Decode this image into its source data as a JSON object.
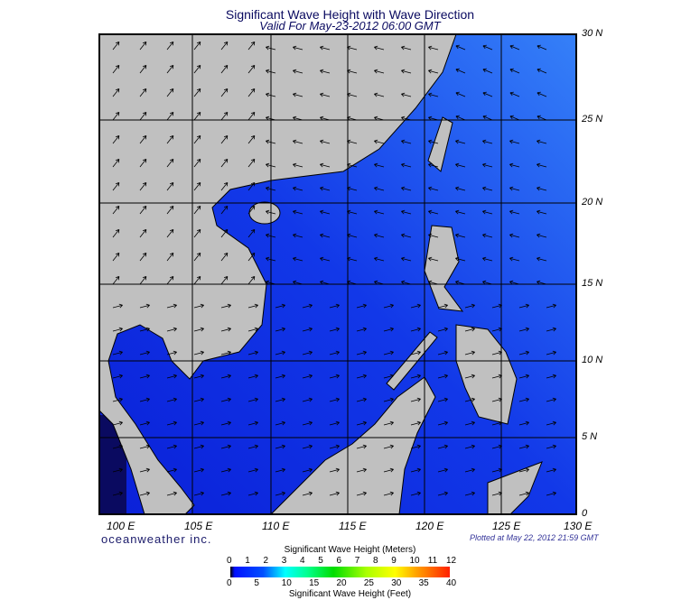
{
  "title": "Significant Wave Height with Wave Direction",
  "subtitle": "Valid For May-23-2012 06:00 GMT",
  "lon_labels": [
    "100 E",
    "105 E",
    "110 E",
    "115 E",
    "120 E",
    "125 E",
    "130 E"
  ],
  "lat_labels": [
    "30 N",
    "25 N",
    "20 N",
    "15 N",
    "10 N",
    "5 N",
    "0"
  ],
  "brand": "oceanweather inc.",
  "plotted": "Plotted at May 22, 2012 21:59 GMT",
  "colorbar": {
    "meters_title": "Significant Wave Height (Meters)",
    "meters_ticks": [
      "0",
      "1",
      "2",
      "3",
      "4",
      "5",
      "6",
      "7",
      "8",
      "9",
      "10",
      "11",
      "12"
    ],
    "feet_ticks": [
      "0",
      "5",
      "10",
      "15",
      "20",
      "25",
      "30",
      "35",
      "40"
    ],
    "feet_title": "Significant Wave Height (Feet)"
  },
  "colors": {
    "ocean": "#1232e6",
    "ocean_light": "#2f6ef5",
    "land": "#c0c0c0",
    "grid": "#000000"
  }
}
